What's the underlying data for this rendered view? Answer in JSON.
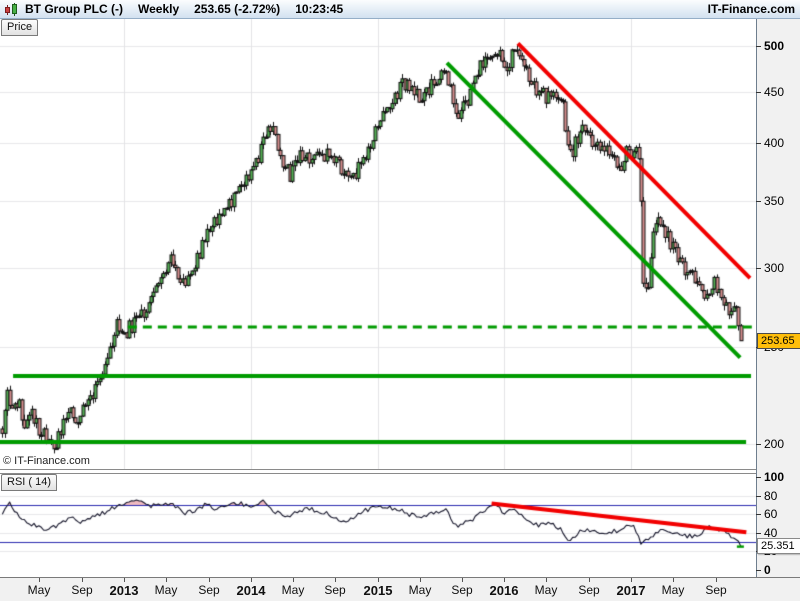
{
  "title_bar": {
    "symbol": "BT Group PLC (-)",
    "timeframe": "Weekly",
    "last_price_change": "253.65 (-2.72%)",
    "time": "10:23:45",
    "brand": "IT-Finance.com"
  },
  "price_pane": {
    "tab_label": "Price",
    "copyright": "© IT-Finance.com",
    "last_price_label": "253.65",
    "axis_ticks": [
      {
        "v": 500,
        "bold": true
      },
      {
        "v": 450,
        "bold": false
      },
      {
        "v": 400,
        "bold": false
      },
      {
        "v": 350,
        "bold": false
      },
      {
        "v": 300,
        "bold": false
      },
      {
        "v": 250,
        "bold": false
      },
      {
        "v": 200,
        "bold": false
      }
    ]
  },
  "rsi_pane": {
    "tab_label": "RSI ( 14)",
    "last_value_label": "25.351",
    "axis_ticks": [
      {
        "v": 100,
        "bold": true
      },
      {
        "v": 80,
        "bold": false
      },
      {
        "v": 60,
        "bold": false
      },
      {
        "v": 40,
        "bold": false
      },
      {
        "v": 20,
        "bold": false
      },
      {
        "v": 0,
        "bold": true
      }
    ]
  },
  "date_axis": {
    "ticks": [
      {
        "t": 2012.333,
        "label": "May",
        "bold": false
      },
      {
        "t": 2012.667,
        "label": "Sep",
        "bold": false
      },
      {
        "t": 2013.0,
        "label": "2013",
        "bold": true
      },
      {
        "t": 2013.333,
        "label": "May",
        "bold": false
      },
      {
        "t": 2013.667,
        "label": "Sep",
        "bold": false
      },
      {
        "t": 2014.0,
        "label": "2014",
        "bold": true
      },
      {
        "t": 2014.333,
        "label": "May",
        "bold": false
      },
      {
        "t": 2014.667,
        "label": "Sep",
        "bold": false
      },
      {
        "t": 2015.0,
        "label": "2015",
        "bold": true
      },
      {
        "t": 2015.333,
        "label": "May",
        "bold": false
      },
      {
        "t": 2015.667,
        "label": "Sep",
        "bold": false
      },
      {
        "t": 2016.0,
        "label": "2016",
        "bold": true
      },
      {
        "t": 2016.333,
        "label": "May",
        "bold": false
      },
      {
        "t": 2016.667,
        "label": "Sep",
        "bold": false
      },
      {
        "t": 2017.0,
        "label": "2017",
        "bold": true
      },
      {
        "t": 2017.333,
        "label": "May",
        "bold": false
      },
      {
        "t": 2017.667,
        "label": "Sep",
        "bold": false
      }
    ]
  },
  "chart_data": {
    "type": "candlestick",
    "title": "BT Group PLC, Weekly, log scale, with RSI(14) sub-chart",
    "x_range": [
      2012.04,
      2017.95
    ],
    "price_scale": "log",
    "price_ticks": [
      500,
      450,
      400,
      350,
      300,
      250,
      200
    ],
    "year_gridlines": [
      2013,
      2014,
      2015,
      2016,
      2017
    ],
    "last_close": 253.65,
    "bars_per_year": 52,
    "seed": 987654321,
    "volatility": {
      "close_jitter": 0.018,
      "wick": 0.013
    },
    "candle_colors": {
      "up_fill": "#54b054",
      "down_fill": "#d88f8f",
      "outline": "#141414"
    },
    "price_path": [
      [
        2012.04,
        205
      ],
      [
        2012.07,
        225
      ],
      [
        2012.11,
        213
      ],
      [
        2012.16,
        221
      ],
      [
        2012.22,
        207
      ],
      [
        2012.28,
        214
      ],
      [
        2012.34,
        206
      ],
      [
        2012.42,
        200
      ],
      [
        2012.46,
        198
      ],
      [
        2012.52,
        210
      ],
      [
        2012.58,
        218
      ],
      [
        2012.64,
        211
      ],
      [
        2012.71,
        221
      ],
      [
        2012.77,
        228
      ],
      [
        2012.83,
        238
      ],
      [
        2012.89,
        250
      ],
      [
        2012.95,
        263
      ],
      [
        2013.02,
        259
      ],
      [
        2013.08,
        265
      ],
      [
        2013.15,
        271
      ],
      [
        2013.22,
        280
      ],
      [
        2013.3,
        297
      ],
      [
        2013.37,
        306
      ],
      [
        2013.43,
        296
      ],
      [
        2013.5,
        289
      ],
      [
        2013.58,
        308
      ],
      [
        2013.66,
        328
      ],
      [
        2013.74,
        338
      ],
      [
        2013.82,
        344
      ],
      [
        2013.89,
        354
      ],
      [
        2013.96,
        371
      ],
      [
        2014.04,
        382
      ],
      [
        2014.1,
        404
      ],
      [
        2014.16,
        414
      ],
      [
        2014.24,
        386
      ],
      [
        2014.31,
        370
      ],
      [
        2014.39,
        387
      ],
      [
        2014.47,
        383
      ],
      [
        2014.55,
        391
      ],
      [
        2014.63,
        387
      ],
      [
        2014.7,
        380
      ],
      [
        2014.77,
        364
      ],
      [
        2014.85,
        377
      ],
      [
        2014.92,
        394
      ],
      [
        2015.0,
        420
      ],
      [
        2015.07,
        431
      ],
      [
        2015.14,
        447
      ],
      [
        2015.21,
        459
      ],
      [
        2015.29,
        449
      ],
      [
        2015.36,
        444
      ],
      [
        2015.44,
        461
      ],
      [
        2015.51,
        477
      ],
      [
        2015.57,
        459
      ],
      [
        2015.63,
        422
      ],
      [
        2015.7,
        438
      ],
      [
        2015.78,
        468
      ],
      [
        2015.86,
        488
      ],
      [
        2015.94,
        497
      ],
      [
        2016.02,
        477
      ],
      [
        2016.08,
        497
      ],
      [
        2016.14,
        485
      ],
      [
        2016.21,
        463
      ],
      [
        2016.28,
        447
      ],
      [
        2016.35,
        446
      ],
      [
        2016.42,
        452
      ],
      [
        2016.47,
        431
      ],
      [
        2016.51,
        387
      ],
      [
        2016.56,
        399
      ],
      [
        2016.62,
        412
      ],
      [
        2016.69,
        404
      ],
      [
        2016.76,
        397
      ],
      [
        2016.83,
        391
      ],
      [
        2016.9,
        372
      ],
      [
        2016.96,
        396
      ],
      [
        2017.02,
        391
      ],
      [
        2017.07,
        391
      ],
      [
        2017.09,
        296
      ],
      [
        2017.13,
        284
      ],
      [
        2017.17,
        326
      ],
      [
        2017.22,
        338
      ],
      [
        2017.28,
        324
      ],
      [
        2017.34,
        310
      ],
      [
        2017.41,
        301
      ],
      [
        2017.47,
        295
      ],
      [
        2017.53,
        287
      ],
      [
        2017.6,
        280
      ],
      [
        2017.66,
        291
      ],
      [
        2017.72,
        281
      ],
      [
        2017.77,
        269
      ],
      [
        2017.81,
        277
      ],
      [
        2017.85,
        263
      ],
      [
        2017.875,
        253.65
      ]
    ],
    "overlays": {
      "resistance_trendline_red": {
        "from": [
          2016.108,
          503
        ],
        "to": [
          2017.939,
          293
        ],
        "color": "#f20000",
        "width": 4
      },
      "trendline_green": {
        "from": [
          2015.548,
          481
        ],
        "to": [
          2017.861,
          244
        ],
        "color": "#009b00",
        "width": 4
      },
      "dashed_support": {
        "price": 262,
        "from_t": 2013.03,
        "to_t": 2017.956,
        "color": "#009b00",
        "width": 3
      },
      "support_upper": {
        "price": 234,
        "from_t": 2012.125,
        "to_t": 2017.947,
        "color": "#009b00",
        "width": 4
      },
      "support_lower": {
        "price": 201,
        "from_t": 2012.02,
        "to_t": 2017.908,
        "color": "#009b00",
        "width": 4
      }
    },
    "rsi": {
      "period": 14,
      "last_value": 25.351,
      "levels": {
        "overbought": 70,
        "oversold": 30,
        "color": "#2a2ab0"
      },
      "grid": [
        80,
        60,
        40,
        20
      ],
      "line_color": "#15152a",
      "overbought_fill": "rgba(225,130,140,0.55)",
      "trendline_red": {
        "from": [
          2015.9,
          71.4
        ],
        "to": [
          2017.91,
          40.7
        ],
        "color": "#f20000",
        "width": 4
      },
      "path": [
        [
          2012.04,
          62
        ],
        [
          2012.1,
          71
        ],
        [
          2012.18,
          56
        ],
        [
          2012.28,
          48
        ],
        [
          2012.4,
          44
        ],
        [
          2012.5,
          50
        ],
        [
          2012.58,
          56
        ],
        [
          2012.66,
          52
        ],
        [
          2012.76,
          58
        ],
        [
          2012.86,
          62
        ],
        [
          2012.95,
          70
        ],
        [
          2013.04,
          74
        ],
        [
          2013.11,
          77
        ],
        [
          2013.2,
          68
        ],
        [
          2013.3,
          71
        ],
        [
          2013.4,
          70
        ],
        [
          2013.48,
          60
        ],
        [
          2013.56,
          64
        ],
        [
          2013.64,
          70
        ],
        [
          2013.72,
          66
        ],
        [
          2013.8,
          68
        ],
        [
          2013.9,
          72
        ],
        [
          2014.0,
          68
        ],
        [
          2014.09,
          74
        ],
        [
          2014.2,
          62
        ],
        [
          2014.3,
          58
        ],
        [
          2014.42,
          66
        ],
        [
          2014.52,
          64
        ],
        [
          2014.62,
          60
        ],
        [
          2014.72,
          52
        ],
        [
          2014.82,
          58
        ],
        [
          2014.94,
          66
        ],
        [
          2015.05,
          68
        ],
        [
          2015.15,
          66
        ],
        [
          2015.25,
          60
        ],
        [
          2015.35,
          55
        ],
        [
          2015.45,
          62
        ],
        [
          2015.54,
          65
        ],
        [
          2015.62,
          47
        ],
        [
          2015.72,
          52
        ],
        [
          2015.82,
          62
        ],
        [
          2015.91,
          71
        ],
        [
          2016.0,
          62
        ],
        [
          2016.07,
          67
        ],
        [
          2016.17,
          55
        ],
        [
          2016.27,
          48
        ],
        [
          2016.37,
          52
        ],
        [
          2016.46,
          42
        ],
        [
          2016.52,
          30
        ],
        [
          2016.6,
          44
        ],
        [
          2016.7,
          42
        ],
        [
          2016.8,
          38
        ],
        [
          2016.88,
          42
        ],
        [
          2016.96,
          46
        ],
        [
          2017.02,
          50
        ],
        [
          2017.08,
          26
        ],
        [
          2017.15,
          36
        ],
        [
          2017.25,
          44
        ],
        [
          2017.35,
          40
        ],
        [
          2017.45,
          36
        ],
        [
          2017.55,
          38
        ],
        [
          2017.62,
          47
        ],
        [
          2017.7,
          43
        ],
        [
          2017.78,
          37
        ],
        [
          2017.83,
          32
        ],
        [
          2017.875,
          25.351
        ]
      ]
    }
  }
}
